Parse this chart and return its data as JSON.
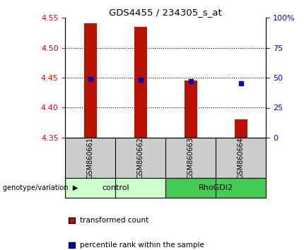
{
  "title": "GDS4455 / 234305_s_at",
  "samples": [
    "GSM860661",
    "GSM860662",
    "GSM860663",
    "GSM860664"
  ],
  "bar_tops": [
    4.54,
    4.535,
    4.445,
    4.38
  ],
  "bar_bottom": 4.35,
  "blue_y": [
    4.448,
    4.447,
    4.444,
    4.441
  ],
  "ylim_left": [
    4.35,
    4.55
  ],
  "ylim_right": [
    0,
    100
  ],
  "yticks_left": [
    4.35,
    4.4,
    4.45,
    4.5,
    4.55
  ],
  "yticks_right": [
    0,
    25,
    50,
    75,
    100
  ],
  "ytick_labels_right": [
    "0",
    "25",
    "50",
    "75",
    "100%"
  ],
  "bar_color": "#bb1100",
  "blue_color": "#0000bb",
  "sample_bg": "#cccccc",
  "control_bg": "#bbffbb",
  "rho_bg": "#33cc55",
  "bar_width": 0.25,
  "legend_red_label": "transformed count",
  "legend_blue_label": "percentile rank within the sample",
  "group_label": "genotype/variation",
  "groups_info": [
    {
      "label": "control",
      "start": 0,
      "end": 2,
      "color": "#ccffcc"
    },
    {
      "label": "RhoGDI2",
      "start": 2,
      "end": 4,
      "color": "#44cc55"
    }
  ]
}
